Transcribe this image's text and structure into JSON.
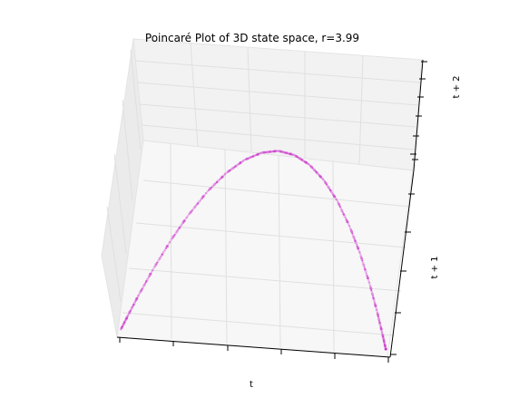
{
  "chart_data": {
    "type": "scatter",
    "projection": "3d",
    "title": "Poincaré Plot of 3D state space, r=3.99",
    "xlabel": "t",
    "ylabel": "t + 1",
    "zlabel": "t + 2",
    "xlim": [
      0,
      1
    ],
    "ylim": [
      0,
      1
    ],
    "zlim": [
      0,
      1
    ],
    "grid": true,
    "show_tick_labels": false,
    "color": "#cc33cc",
    "series": [
      {
        "x": [
          0.01,
          0.03,
          0.06,
          0.1,
          0.15,
          0.2,
          0.26,
          0.32,
          0.38,
          0.44,
          0.5,
          0.56,
          0.62,
          0.68,
          0.74,
          0.8,
          0.85,
          0.9,
          0.94,
          0.97,
          0.99
        ],
        "y": [
          0.04,
          0.116,
          0.225,
          0.359,
          0.509,
          0.638,
          0.768,
          0.868,
          0.94,
          0.983,
          0.998,
          0.983,
          0.94,
          0.868,
          0.768,
          0.638,
          0.509,
          0.359,
          0.225,
          0.116,
          0.04
        ],
        "z": [
          0.152,
          0.409,
          0.696,
          0.918,
          0.997,
          0.921,
          0.711,
          0.458,
          0.225,
          0.067,
          0.008,
          0.067,
          0.225,
          0.458,
          0.711,
          0.921,
          0.997,
          0.918,
          0.696,
          0.409,
          0.152
        ]
      }
    ]
  }
}
